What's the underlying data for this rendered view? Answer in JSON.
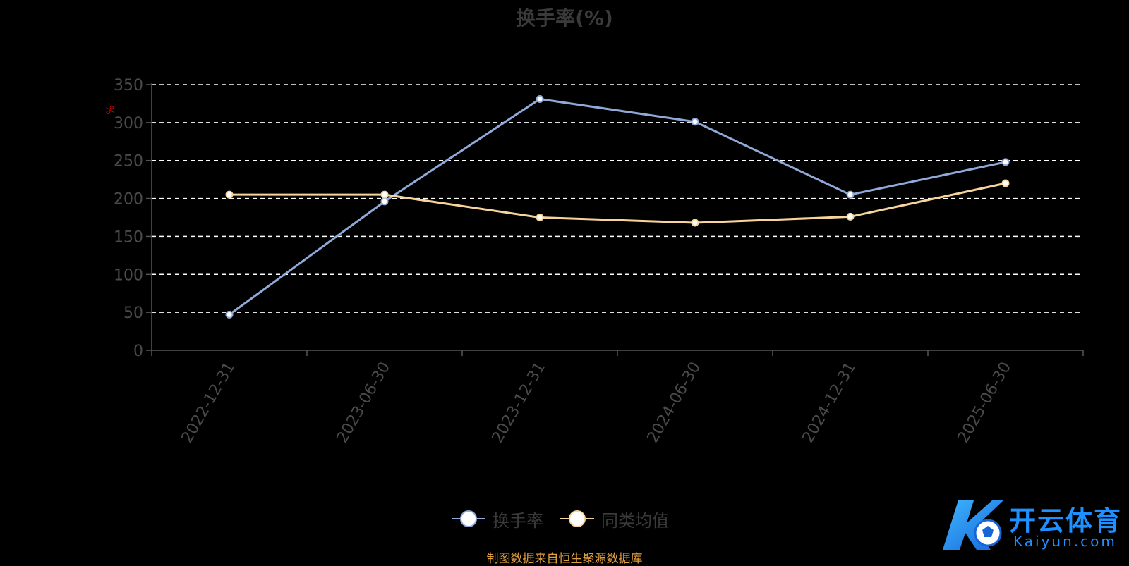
{
  "chart_data": {
    "type": "line",
    "title": "换手率(%)",
    "ylabel": "%",
    "categories": [
      "2022-12-31",
      "2023-06-30",
      "2023-12-31",
      "2024-06-30",
      "2024-12-31",
      "2025-06-30"
    ],
    "ylim": [
      0,
      350
    ],
    "yticks": [
      0,
      50,
      100,
      150,
      200,
      250,
      300,
      350
    ],
    "grid": true,
    "series": [
      {
        "name": "换手率",
        "values": [
          47,
          196,
          331,
          301,
          205,
          248
        ],
        "color": "#8fa9d8"
      },
      {
        "name": "同类均值",
        "values": [
          205,
          205,
          175,
          168,
          176,
          220
        ],
        "color": "#f7d49a"
      }
    ],
    "legend_placement": "bottom-center"
  },
  "footer": {
    "source_text": "制图数据来自恒生聚源数据库"
  },
  "watermark": {
    "brand": "开云体育",
    "domain": "Kaiyun.com"
  }
}
